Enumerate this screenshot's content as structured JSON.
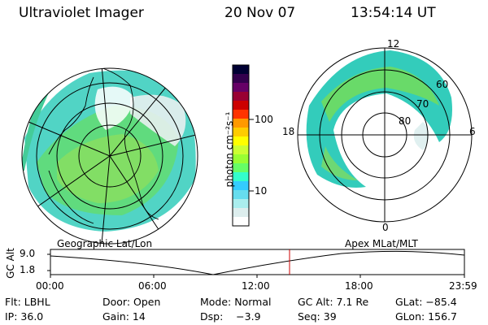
{
  "header": {
    "instrument": "Ultraviolet Imager",
    "date": "20 Nov 07",
    "time": "13:54:14 UT"
  },
  "colorbar": {
    "unit_label": "photon cm⁻²s⁻¹",
    "tick_labels": [
      "100",
      "10"
    ],
    "colors": [
      "#000033",
      "#33004d",
      "#660066",
      "#990033",
      "#cc0000",
      "#ff3300",
      "#ff9900",
      "#ffcc00",
      "#ffff00",
      "#ccff33",
      "#99ff33",
      "#66ff66",
      "#33ffcc",
      "#33ccff",
      "#66ddee",
      "#aaeeee",
      "#ddeeee",
      "#ffffff"
    ]
  },
  "left_map": {
    "caption": "Geographic Lat/Lon"
  },
  "right_map": {
    "caption": "Apex  MLat/MLT",
    "mlt_labels": {
      "top": "12",
      "left": "18",
      "right": "6",
      "bottom": "0"
    },
    "lat_labels": [
      "60",
      "70",
      "80"
    ]
  },
  "altitude_plot": {
    "ylabel": "GC Alt",
    "y_ticks": [
      "9.0",
      "1.8"
    ],
    "x_ticks": [
      "00:00",
      "06:00",
      "12:00",
      "18:00",
      "23:59"
    ],
    "marker_color": "#cc0000"
  },
  "info": {
    "flt": "Flt: LBHL",
    "door": "Door: Open",
    "mode": "Mode: Normal",
    "gc_alt": "GC Alt: 7.1 Re",
    "glat": "GLat: −85.4",
    "ip": "IP: 36.0",
    "gain": "Gain: 14",
    "dsp": "Dsp:    −3.9",
    "seq": "Seq: 39",
    "glon": "GLon: 156.7"
  }
}
